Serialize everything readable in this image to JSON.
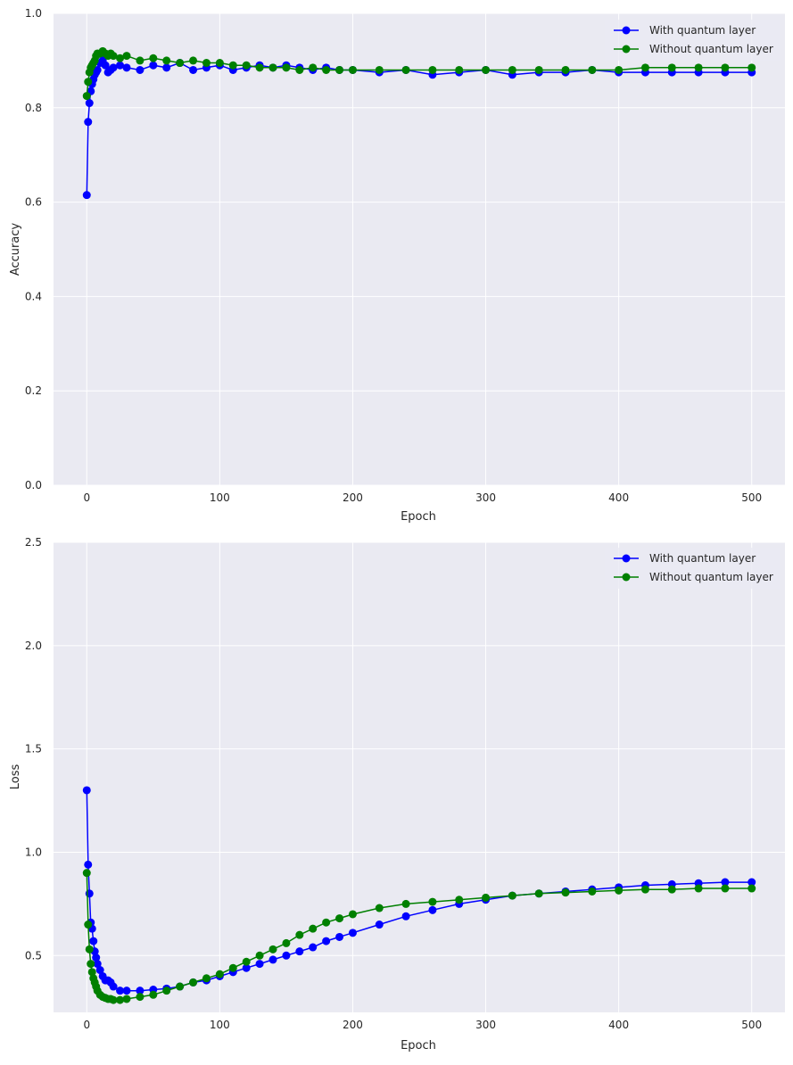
{
  "chart_data": [
    {
      "type": "line",
      "title": "",
      "xlabel": "Epoch",
      "ylabel": "Accuracy",
      "xlim": [
        -25,
        525
      ],
      "ylim": [
        0.0,
        1.0
      ],
      "xticks": [
        0,
        100,
        200,
        300,
        400,
        500
      ],
      "xtick_labels": [
        "0",
        "100",
        "200",
        "300",
        "400",
        "500"
      ],
      "yticks": [
        0.0,
        0.2,
        0.4,
        0.6,
        0.8,
        1.0
      ],
      "ytick_labels": [
        "0.0",
        "0.2",
        "0.4",
        "0.6",
        "0.8",
        "1.0"
      ],
      "grid": true,
      "legend": "top-right",
      "series": [
        {
          "name": "With quantum layer",
          "color": "#0000ff",
          "x": [
            0,
            1,
            2,
            3,
            4,
            5,
            6,
            7,
            8,
            10,
            12,
            14,
            16,
            18,
            20,
            25,
            30,
            40,
            50,
            60,
            70,
            80,
            90,
            100,
            110,
            120,
            130,
            140,
            150,
            160,
            170,
            180,
            190,
            200,
            220,
            240,
            260,
            280,
            300,
            320,
            340,
            360,
            380,
            400,
            420,
            440,
            460,
            480,
            500
          ],
          "values": [
            0.615,
            0.77,
            0.81,
            0.835,
            0.85,
            0.86,
            0.87,
            0.875,
            0.88,
            0.895,
            0.9,
            0.89,
            0.875,
            0.88,
            0.885,
            0.89,
            0.885,
            0.88,
            0.89,
            0.885,
            0.895,
            0.88,
            0.885,
            0.89,
            0.88,
            0.885,
            0.89,
            0.885,
            0.89,
            0.885,
            0.88,
            0.885,
            0.88,
            0.88,
            0.875,
            0.88,
            0.87,
            0.875,
            0.88,
            0.87,
            0.875,
            0.875,
            0.88,
            0.875,
            0.875,
            0.875,
            0.875,
            0.875,
            0.875
          ]
        },
        {
          "name": "Without quantum layer",
          "color": "#008000",
          "x": [
            0,
            1,
            2,
            3,
            4,
            5,
            6,
            7,
            8,
            10,
            12,
            14,
            16,
            18,
            20,
            25,
            30,
            40,
            50,
            60,
            70,
            80,
            90,
            100,
            110,
            120,
            130,
            140,
            150,
            160,
            170,
            180,
            190,
            200,
            220,
            240,
            260,
            280,
            300,
            320,
            340,
            360,
            380,
            400,
            420,
            440,
            460,
            480,
            500
          ],
          "values": [
            0.825,
            0.855,
            0.875,
            0.885,
            0.89,
            0.895,
            0.9,
            0.91,
            0.915,
            0.915,
            0.92,
            0.915,
            0.91,
            0.915,
            0.91,
            0.905,
            0.91,
            0.9,
            0.905,
            0.9,
            0.895,
            0.9,
            0.895,
            0.895,
            0.89,
            0.89,
            0.885,
            0.885,
            0.885,
            0.88,
            0.885,
            0.88,
            0.88,
            0.88,
            0.88,
            0.88,
            0.88,
            0.88,
            0.88,
            0.88,
            0.88,
            0.88,
            0.88,
            0.88,
            0.885,
            0.885,
            0.885,
            0.885,
            0.885
          ]
        }
      ]
    },
    {
      "type": "line",
      "title": "",
      "xlabel": "Epoch",
      "ylabel": "Loss",
      "xlim": [
        -25,
        525
      ],
      "ylim": [
        0.225,
        2.5
      ],
      "xticks": [
        0,
        100,
        200,
        300,
        400,
        500
      ],
      "xtick_labels": [
        "0",
        "100",
        "200",
        "300",
        "400",
        "500"
      ],
      "yticks": [
        0.5,
        1.0,
        1.5,
        2.0,
        2.5
      ],
      "ytick_labels": [
        "0.5",
        "1.0",
        "1.5",
        "2.0",
        "2.5"
      ],
      "grid": true,
      "legend": "top-right",
      "series": [
        {
          "name": "With quantum layer",
          "color": "#0000ff",
          "x": [
            0,
            1,
            2,
            3,
            4,
            5,
            6,
            7,
            8,
            10,
            12,
            14,
            16,
            18,
            20,
            25,
            30,
            40,
            50,
            60,
            70,
            80,
            90,
            100,
            110,
            120,
            130,
            140,
            150,
            160,
            170,
            180,
            190,
            200,
            220,
            240,
            260,
            280,
            300,
            320,
            340,
            360,
            380,
            400,
            420,
            440,
            460,
            480,
            500
          ],
          "values": [
            1.3,
            0.94,
            0.8,
            0.66,
            0.63,
            0.57,
            0.52,
            0.49,
            0.46,
            0.43,
            0.4,
            0.38,
            0.38,
            0.37,
            0.35,
            0.33,
            0.33,
            0.33,
            0.335,
            0.34,
            0.35,
            0.37,
            0.38,
            0.4,
            0.42,
            0.44,
            0.46,
            0.48,
            0.5,
            0.52,
            0.54,
            0.57,
            0.59,
            0.61,
            0.65,
            0.69,
            0.72,
            0.75,
            0.77,
            0.79,
            0.8,
            0.81,
            0.82,
            0.83,
            0.84,
            0.845,
            0.85,
            0.855,
            0.855
          ]
        },
        {
          "name": "Without quantum layer",
          "color": "#008000",
          "x": [
            0,
            1,
            2,
            3,
            4,
            5,
            6,
            7,
            8,
            10,
            12,
            14,
            16,
            18,
            20,
            25,
            30,
            40,
            50,
            60,
            70,
            80,
            90,
            100,
            110,
            120,
            130,
            140,
            150,
            160,
            170,
            180,
            190,
            200,
            220,
            240,
            260,
            280,
            300,
            320,
            340,
            360,
            380,
            400,
            420,
            440,
            460,
            480,
            500
          ],
          "values": [
            0.9,
            0.65,
            0.53,
            0.46,
            0.42,
            0.39,
            0.37,
            0.35,
            0.33,
            0.31,
            0.3,
            0.295,
            0.29,
            0.29,
            0.285,
            0.285,
            0.29,
            0.3,
            0.31,
            0.33,
            0.35,
            0.37,
            0.39,
            0.41,
            0.44,
            0.47,
            0.5,
            0.53,
            0.56,
            0.6,
            0.63,
            0.66,
            0.68,
            0.7,
            0.73,
            0.75,
            0.76,
            0.77,
            0.78,
            0.79,
            0.8,
            0.805,
            0.81,
            0.815,
            0.82,
            0.82,
            0.825,
            0.825,
            0.825
          ]
        }
      ]
    }
  ]
}
